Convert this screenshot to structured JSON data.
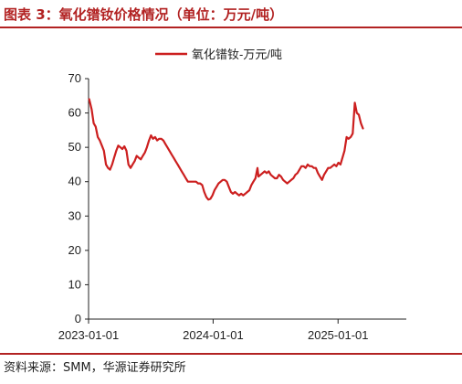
{
  "figure": {
    "title": "图表 3：氧化镨钕价格情况（单位：万元/吨）",
    "source": "资料来源：SMM，华源证券研究所"
  },
  "colors": {
    "accent": "#b22222",
    "axis": "#222222"
  },
  "chart_data": {
    "type": "line",
    "title": "",
    "xlabel": "",
    "ylabel": "",
    "ylim": [
      0,
      70
    ],
    "yticks": [
      0,
      10,
      20,
      30,
      40,
      50,
      60,
      70
    ],
    "ytick_labels": [
      "0",
      "10",
      "20",
      "30",
      "40",
      "50",
      "60",
      "70"
    ],
    "xlim": [
      "2023-01-01",
      "2025-07-20"
    ],
    "xticks": [
      "2023-01-01",
      "2024-01-01",
      "2025-01-01"
    ],
    "xtick_labels": [
      "2023-01-01",
      "2024-01-01",
      "2025-01-01"
    ],
    "grid": false,
    "legend": "top-center",
    "series": [
      {
        "name": "氧化镨钕-万元/吨",
        "color": "#cc1f1f",
        "points": [
          [
            "2023-01-03",
            64.0
          ],
          [
            "2023-01-10",
            61.0
          ],
          [
            "2023-01-16",
            57.0
          ],
          [
            "2023-01-22",
            56.0
          ],
          [
            "2023-01-28",
            53.0
          ],
          [
            "2023-02-03",
            52.0
          ],
          [
            "2023-02-09",
            50.5
          ],
          [
            "2023-02-15",
            49.0
          ],
          [
            "2023-02-21",
            45.0
          ],
          [
            "2023-02-27",
            44.0
          ],
          [
            "2023-03-05",
            43.5
          ],
          [
            "2023-03-11",
            45.0
          ],
          [
            "2023-03-17",
            47.0
          ],
          [
            "2023-03-23",
            49.0
          ],
          [
            "2023-03-29",
            50.5
          ],
          [
            "2023-04-04",
            50.0
          ],
          [
            "2023-04-10",
            49.5
          ],
          [
            "2023-04-16",
            50.3
          ],
          [
            "2023-04-22",
            49.0
          ],
          [
            "2023-04-28",
            45.0
          ],
          [
            "2023-05-04",
            44.0
          ],
          [
            "2023-05-10",
            45.0
          ],
          [
            "2023-05-16",
            46.0
          ],
          [
            "2023-05-22",
            47.5
          ],
          [
            "2023-05-28",
            47.0
          ],
          [
            "2023-06-03",
            46.5
          ],
          [
            "2023-06-09",
            47.5
          ],
          [
            "2023-06-15",
            48.5
          ],
          [
            "2023-06-21",
            50.0
          ],
          [
            "2023-06-27",
            52.0
          ],
          [
            "2023-07-03",
            53.5
          ],
          [
            "2023-07-09",
            52.5
          ],
          [
            "2023-07-15",
            53.0
          ],
          [
            "2023-07-21",
            52.0
          ],
          [
            "2023-07-27",
            52.5
          ],
          [
            "2023-08-02",
            52.5
          ],
          [
            "2023-08-08",
            52.0
          ],
          [
            "2023-08-14",
            51.0
          ],
          [
            "2023-08-20",
            50.0
          ],
          [
            "2023-08-26",
            49.0
          ],
          [
            "2023-09-01",
            48.0
          ],
          [
            "2023-09-07",
            47.0
          ],
          [
            "2023-09-13",
            46.0
          ],
          [
            "2023-09-19",
            45.0
          ],
          [
            "2023-09-25",
            44.0
          ],
          [
            "2023-10-01",
            43.0
          ],
          [
            "2023-10-07",
            42.0
          ],
          [
            "2023-10-13",
            41.0
          ],
          [
            "2023-10-19",
            40.0
          ],
          [
            "2023-10-25",
            40.0
          ],
          [
            "2023-10-31",
            40.0
          ],
          [
            "2023-11-06",
            40.0
          ],
          [
            "2023-11-12",
            40.0
          ],
          [
            "2023-11-18",
            39.5
          ],
          [
            "2023-11-24",
            39.5
          ],
          [
            "2023-11-30",
            39.0
          ],
          [
            "2023-12-06",
            37.0
          ],
          [
            "2023-12-12",
            35.5
          ],
          [
            "2023-12-18",
            34.8
          ],
          [
            "2023-12-24",
            35.0
          ],
          [
            "2023-12-30",
            36.0
          ],
          [
            "2024-01-05",
            37.5
          ],
          [
            "2024-01-11",
            38.5
          ],
          [
            "2024-01-17",
            39.5
          ],
          [
            "2024-01-23",
            40.0
          ],
          [
            "2024-01-29",
            40.5
          ],
          [
            "2024-02-04",
            40.5
          ],
          [
            "2024-02-10",
            40.0
          ],
          [
            "2024-02-16",
            38.5
          ],
          [
            "2024-02-22",
            37.0
          ],
          [
            "2024-02-28",
            36.5
          ],
          [
            "2024-03-05",
            37.0
          ],
          [
            "2024-03-11",
            36.5
          ],
          [
            "2024-03-17",
            36.0
          ],
          [
            "2024-03-23",
            36.5
          ],
          [
            "2024-03-29",
            36.0
          ],
          [
            "2024-04-04",
            36.5
          ],
          [
            "2024-04-10",
            37.0
          ],
          [
            "2024-04-16",
            37.5
          ],
          [
            "2024-04-22",
            39.0
          ],
          [
            "2024-04-28",
            40.0
          ],
          [
            "2024-05-04",
            41.0
          ],
          [
            "2024-05-10",
            44.0
          ],
          [
            "2024-05-13",
            41.5
          ],
          [
            "2024-05-19",
            42.0
          ],
          [
            "2024-05-25",
            42.5
          ],
          [
            "2024-05-31",
            43.0
          ],
          [
            "2024-06-06",
            42.5
          ],
          [
            "2024-06-12",
            43.0
          ],
          [
            "2024-06-18",
            42.0
          ],
          [
            "2024-06-24",
            41.5
          ],
          [
            "2024-06-30",
            41.0
          ],
          [
            "2024-07-06",
            41.0
          ],
          [
            "2024-07-12",
            42.0
          ],
          [
            "2024-07-18",
            41.5
          ],
          [
            "2024-07-24",
            40.5
          ],
          [
            "2024-07-30",
            40.0
          ],
          [
            "2024-08-05",
            39.5
          ],
          [
            "2024-08-11",
            40.0
          ],
          [
            "2024-08-17",
            40.5
          ],
          [
            "2024-08-23",
            41.0
          ],
          [
            "2024-08-29",
            42.0
          ],
          [
            "2024-09-04",
            42.5
          ],
          [
            "2024-09-10",
            43.5
          ],
          [
            "2024-09-16",
            44.5
          ],
          [
            "2024-09-22",
            44.5
          ],
          [
            "2024-09-28",
            44.0
          ],
          [
            "2024-10-04",
            45.0
          ],
          [
            "2024-10-10",
            44.5
          ],
          [
            "2024-10-16",
            44.5
          ],
          [
            "2024-10-22",
            44.0
          ],
          [
            "2024-10-28",
            44.0
          ],
          [
            "2024-11-03",
            42.5
          ],
          [
            "2024-11-09",
            41.5
          ],
          [
            "2024-11-15",
            40.5
          ],
          [
            "2024-11-21",
            42.0
          ],
          [
            "2024-11-27",
            43.0
          ],
          [
            "2024-12-03",
            44.0
          ],
          [
            "2024-12-09",
            44.0
          ],
          [
            "2024-12-15",
            44.5
          ],
          [
            "2024-12-21",
            45.0
          ],
          [
            "2024-12-27",
            44.5
          ],
          [
            "2025-01-02",
            45.5
          ],
          [
            "2025-01-08",
            45.0
          ],
          [
            "2025-01-14",
            47.0
          ],
          [
            "2025-01-20",
            49.0
          ],
          [
            "2025-01-26",
            53.0
          ],
          [
            "2025-02-01",
            52.5
          ],
          [
            "2025-02-07",
            53.0
          ],
          [
            "2025-02-13",
            54.0
          ],
          [
            "2025-02-19",
            63.0
          ],
          [
            "2025-02-25",
            60.0
          ],
          [
            "2025-03-03",
            59.5
          ],
          [
            "2025-03-09",
            57.0
          ],
          [
            "2025-03-15",
            55.5
          ]
        ]
      }
    ]
  }
}
